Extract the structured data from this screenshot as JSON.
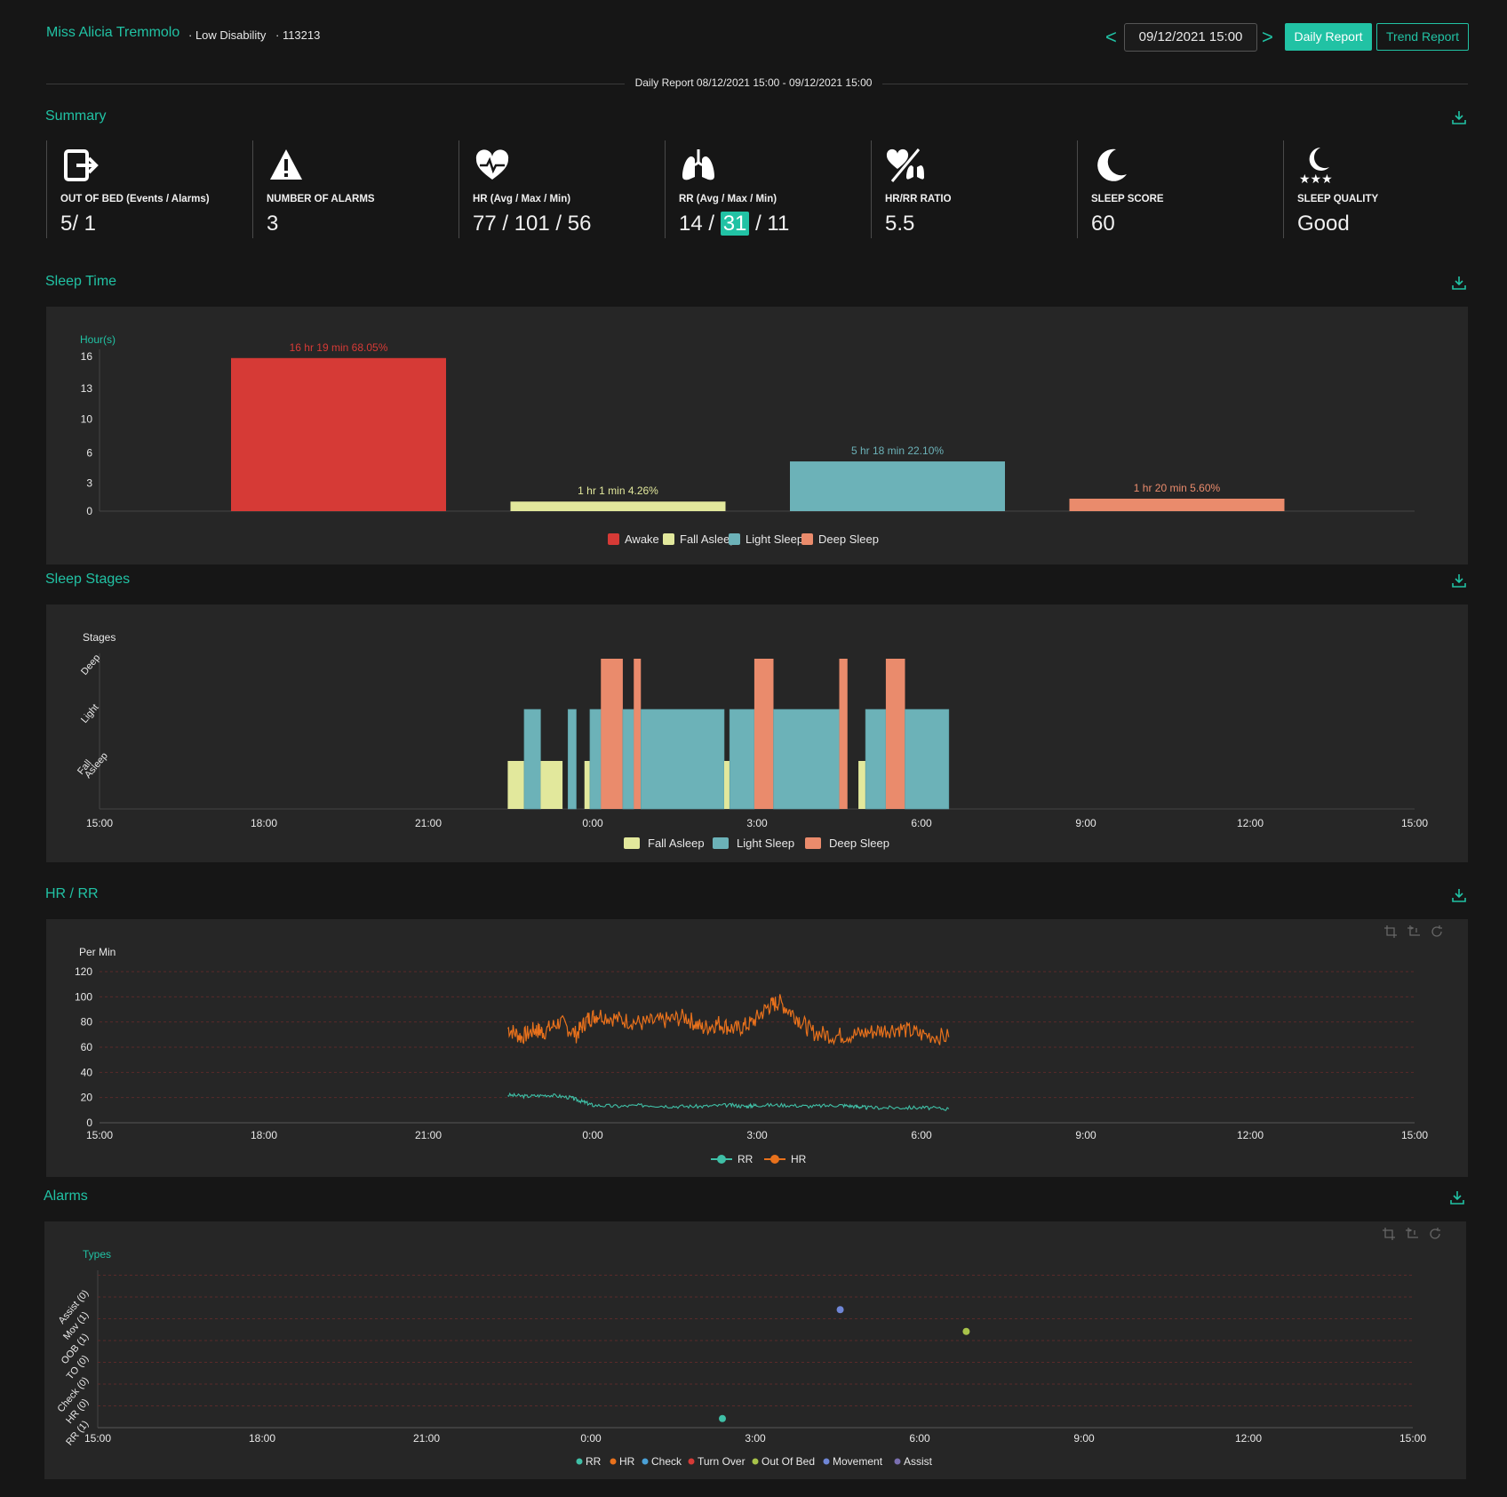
{
  "header": {
    "patient_name": "Miss Alicia Tremmolo",
    "care_level": "· Low Disability",
    "patient_id": "· 113213",
    "prev_label": "<",
    "next_label": ">",
    "date_value": "09/12/2021 15:00",
    "daily_report_label": "Daily Report",
    "trend_report_label": "Trend Report",
    "report_range": "Daily Report 08/12/2021 15:00 - 09/12/2021 15:00"
  },
  "sections": {
    "summary": "Summary",
    "sleep_time": "Sleep Time",
    "sleep_stages": "Sleep Stages",
    "hr_rr": "HR / RR",
    "alarms": "Alarms"
  },
  "summary": {
    "cards": [
      {
        "icon": "exit-door-icon",
        "label": "OUT OF BED (Events / Alarms)",
        "value": "5/ 1"
      },
      {
        "icon": "warning-icon",
        "label": "NUMBER OF ALARMS",
        "value": "3"
      },
      {
        "icon": "heart-pulse-icon",
        "label": "HR (Avg / Max / Min)",
        "value": "77 / 101 / 56"
      },
      {
        "icon": "lungs-icon",
        "label": "RR (Avg / Max / Min)",
        "value_pre": "14 / ",
        "value_hl": "31",
        "value_post": " / 11"
      },
      {
        "icon": "hr-rr-ratio-icon",
        "label": "HR/RR RATIO",
        "value": "5.5"
      },
      {
        "icon": "moon-icon",
        "label": "SLEEP SCORE",
        "value": "60"
      },
      {
        "icon": "moon-stars-icon",
        "label": "SLEEP QUALITY",
        "value": "Good"
      }
    ]
  },
  "colors": {
    "accent": "#21c2a4",
    "awake": "#d63a36",
    "fall_asleep": "#e2e89c",
    "light_sleep": "#6cb2b8",
    "deep_sleep": "#ea8b6c",
    "hr": "#e8711c",
    "rr": "#3fbfa6"
  },
  "chart_data": [
    {
      "type": "bar",
      "ylabel": "Hour(s)",
      "yticks": [
        "0",
        "3",
        "6",
        "10",
        "13",
        "16"
      ],
      "ylim": [
        0,
        16.3
      ],
      "categories": [
        "Awake",
        "Fall Asleep",
        "Light Sleep",
        "Deep Sleep"
      ],
      "values": [
        16.32,
        1.02,
        5.3,
        1.33
      ],
      "data_labels": [
        "16 hr 19 min  68.05%",
        "1 hr 1 min  4.26%",
        "5 hr 18 min  22.10%",
        "1 hr 20 min  5.60%"
      ],
      "legend": [
        "Awake",
        "Fall Asleep",
        "Light Sleep",
        "Deep Sleep"
      ]
    },
    {
      "type": "bar",
      "ylabel": "Stages",
      "ylevels": [
        "Fall Asleep",
        "Light",
        "Deep"
      ],
      "xticks": [
        "15:00",
        "18:00",
        "21:00",
        "0:00",
        "3:00",
        "6:00",
        "9:00",
        "12:00",
        "15:00"
      ],
      "legend": [
        "Fall Asleep",
        "Light Sleep",
        "Deep Sleep"
      ],
      "segments_hours_from_start": [
        {
          "start": 7.45,
          "end": 7.75,
          "stage": "Fall Asleep"
        },
        {
          "start": 7.75,
          "end": 8.05,
          "stage": "Light Sleep"
        },
        {
          "start": 8.05,
          "end": 8.45,
          "stage": "Fall Asleep"
        },
        {
          "start": 8.55,
          "end": 8.7,
          "stage": "Light Sleep"
        },
        {
          "start": 8.85,
          "end": 8.95,
          "stage": "Fall Asleep"
        },
        {
          "start": 8.95,
          "end": 9.15,
          "stage": "Light Sleep"
        },
        {
          "start": 9.15,
          "end": 9.55,
          "stage": "Deep Sleep"
        },
        {
          "start": 9.55,
          "end": 9.75,
          "stage": "Light Sleep"
        },
        {
          "start": 9.75,
          "end": 9.88,
          "stage": "Deep Sleep"
        },
        {
          "start": 9.88,
          "end": 11.4,
          "stage": "Light Sleep"
        },
        {
          "start": 11.4,
          "end": 11.5,
          "stage": "Fall Asleep"
        },
        {
          "start": 11.5,
          "end": 11.95,
          "stage": "Light Sleep"
        },
        {
          "start": 11.95,
          "end": 12.3,
          "stage": "Deep Sleep"
        },
        {
          "start": 12.3,
          "end": 13.5,
          "stage": "Light Sleep"
        },
        {
          "start": 13.5,
          "end": 13.65,
          "stage": "Deep Sleep"
        },
        {
          "start": 13.85,
          "end": 13.98,
          "stage": "Fall Asleep"
        },
        {
          "start": 13.98,
          "end": 14.35,
          "stage": "Light Sleep"
        },
        {
          "start": 14.35,
          "end": 14.7,
          "stage": "Deep Sleep"
        },
        {
          "start": 14.7,
          "end": 15.5,
          "stage": "Light Sleep"
        }
      ]
    },
    {
      "type": "line",
      "ylabel": "Per Min",
      "yticks": [
        "0",
        "20",
        "40",
        "60",
        "80",
        "100",
        "120"
      ],
      "ylim": [
        0,
        120
      ],
      "xticks": [
        "15:00",
        "18:00",
        "21:00",
        "0:00",
        "3:00",
        "6:00",
        "9:00",
        "12:00",
        "15:00"
      ],
      "legend": [
        "RR",
        "HR"
      ],
      "series": [
        {
          "name": "HR",
          "x_hours_from_start": [
            7.45,
            7.7,
            7.95,
            8.1,
            8.4,
            8.7,
            8.9,
            9.1,
            9.5,
            9.9,
            10.3,
            10.7,
            11.0,
            11.3,
            11.6,
            11.9,
            12.2,
            12.4,
            12.7,
            13.0,
            13.4,
            13.8,
            14.2,
            14.6,
            15.0,
            15.5
          ],
          "values": [
            75,
            68,
            74,
            72,
            80,
            70,
            82,
            86,
            82,
            79,
            81,
            84,
            75,
            79,
            74,
            79,
            92,
            96,
            85,
            72,
            69,
            70,
            73,
            75,
            70,
            68
          ]
        },
        {
          "name": "RR",
          "x_hours_from_start": [
            7.45,
            7.8,
            8.2,
            8.6,
            8.8,
            9.0,
            9.5,
            10.0,
            10.5,
            11.0,
            11.5,
            11.8,
            12.0,
            12.5,
            13.0,
            13.5,
            13.8,
            14.0,
            14.5,
            15.0,
            15.5
          ],
          "values": [
            22,
            21,
            22,
            20,
            17,
            14,
            13,
            14,
            13,
            13,
            14,
            13,
            14,
            14,
            13,
            14,
            13,
            12,
            12,
            12,
            11
          ]
        }
      ]
    },
    {
      "type": "scatter",
      "ylabel": "Types",
      "ycategories": [
        "RR (1)",
        "HR (0)",
        "Check (0)",
        "TO (0)",
        "OOB (1)",
        "Mov (1)",
        "Assist (0)"
      ],
      "xticks": [
        "15:00",
        "18:00",
        "21:00",
        "0:00",
        "3:00",
        "6:00",
        "9:00",
        "12:00",
        "15:00"
      ],
      "legend": [
        "RR",
        "HR",
        "Check",
        "Turn Over",
        "Out Of Bed",
        "Movement",
        "Assist"
      ],
      "points": [
        {
          "x_hours_from_start": 11.4,
          "category": "RR (1)",
          "type": "RR"
        },
        {
          "x_hours_from_start": 13.55,
          "category": "Mov (1)",
          "type": "Movement"
        },
        {
          "x_hours_from_start": 15.85,
          "category": "OOB (1)",
          "type": "Out Of Bed"
        }
      ]
    }
  ],
  "legend_colors": {
    "RR": "#3fbfa6",
    "HR": "#e8711c",
    "Check": "#4aa0d6",
    "Turn Over": "#d63a36",
    "Out Of Bed": "#a8c34a",
    "Movement": "#6f86d6",
    "Assist": "#7a6fb0"
  }
}
